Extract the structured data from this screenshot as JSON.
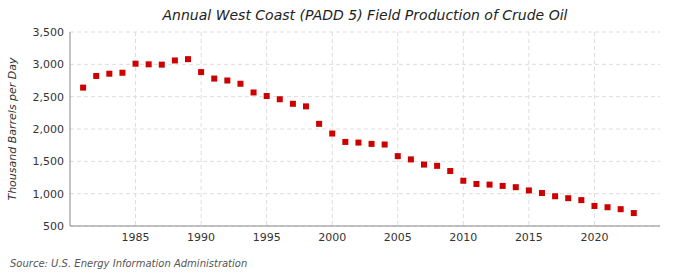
{
  "chart_data": {
    "type": "scatter",
    "title": "Annual West Coast (PADD 5) Field Production of Crude Oil",
    "ylabel": "Thousand Barrels per Day",
    "annotations": [
      "Source: U.S. Energy Information Administration"
    ],
    "color": "#cc0000",
    "marker": "square",
    "grid": true,
    "xlim": [
      1980,
      2025
    ],
    "xticks": [
      1985,
      1990,
      1995,
      2000,
      2005,
      2010,
      2015,
      2020
    ],
    "ylim": [
      500,
      3500
    ],
    "yticks": [
      500,
      {
        "value": 1000,
        "label": "1,000"
      },
      {
        "value": 1500,
        "label": "1,500"
      },
      {
        "value": 2000,
        "label": "2,000"
      },
      {
        "value": 2500,
        "label": "2,500"
      },
      {
        "value": 3000,
        "label": "3,000"
      },
      {
        "value": 3500,
        "label": "3,500"
      }
    ],
    "x": [
      1981,
      1982,
      1983,
      1984,
      1985,
      1986,
      1987,
      1988,
      1989,
      1990,
      1991,
      1992,
      1993,
      1994,
      1995,
      1996,
      1997,
      1998,
      1999,
      2000,
      2001,
      2002,
      2003,
      2004,
      2005,
      2006,
      2007,
      2008,
      2009,
      2010,
      2011,
      2012,
      2013,
      2014,
      2015,
      2016,
      2017,
      2018,
      2019,
      2020,
      2021,
      2022,
      2023
    ],
    "values": [
      2640,
      2820,
      2855,
      2870,
      3010,
      3000,
      2995,
      3060,
      3080,
      2880,
      2780,
      2750,
      2700,
      2565,
      2510,
      2460,
      2390,
      2350,
      2080,
      1930,
      1800,
      1790,
      1770,
      1760,
      1580,
      1530,
      1450,
      1430,
      1350,
      1200,
      1150,
      1140,
      1120,
      1100,
      1050,
      1010,
      960,
      930,
      900,
      810,
      790,
      760,
      700
    ]
  }
}
